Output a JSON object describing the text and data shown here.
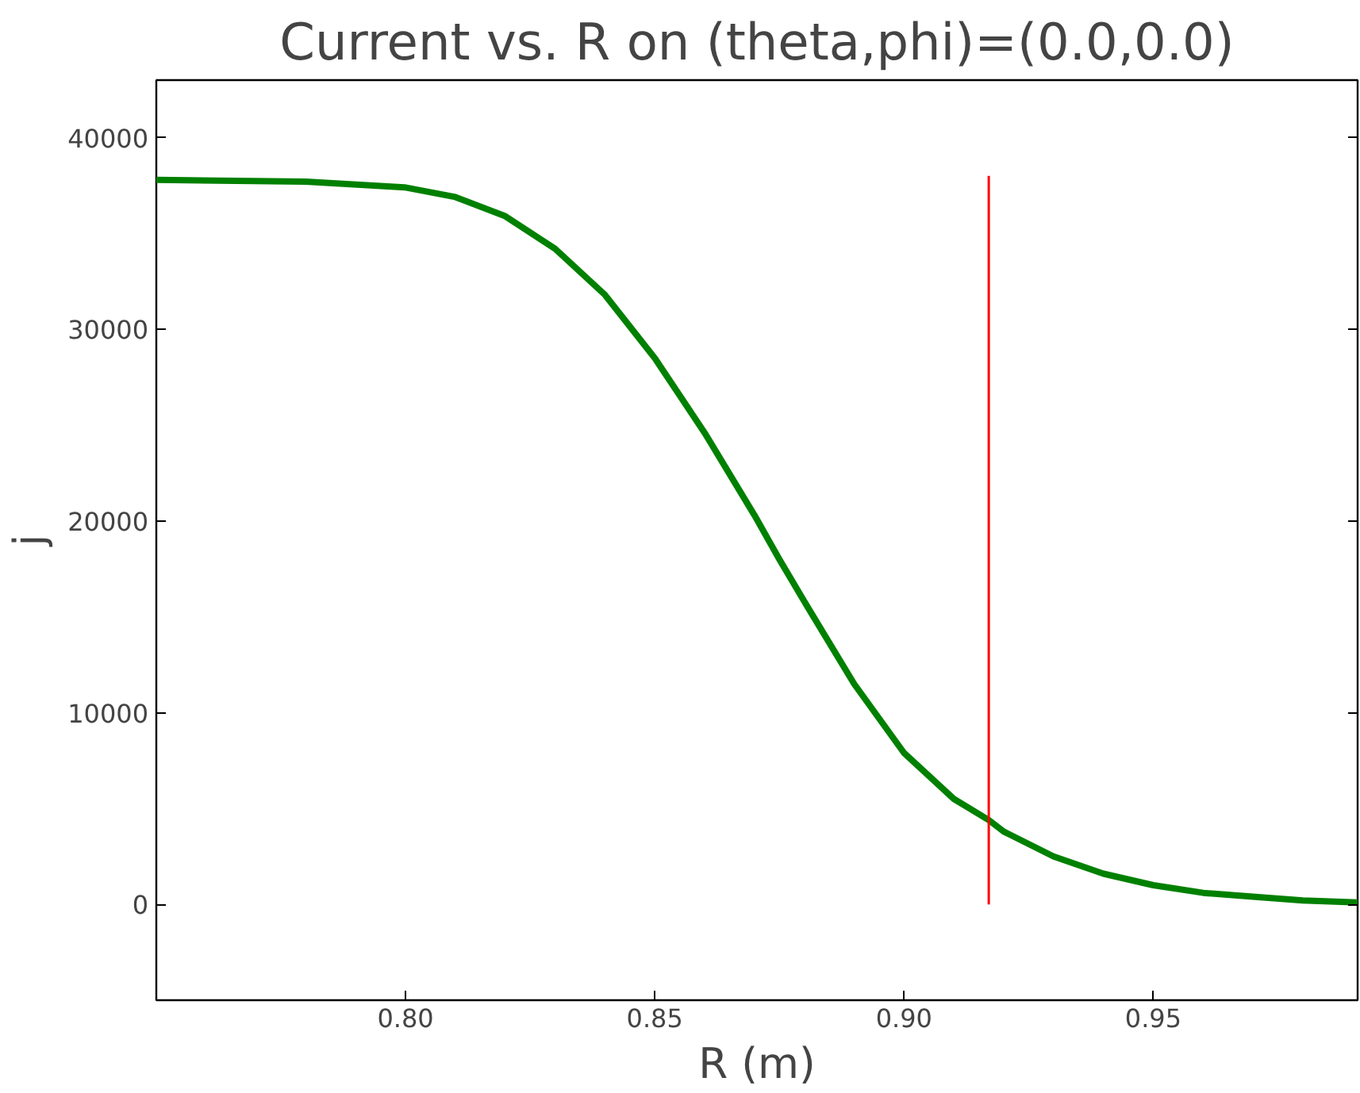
{
  "chart_data": {
    "type": "line",
    "title": "Current vs. R on (theta,phi)=(0.0,0.0)",
    "xlabel": "R (m)",
    "ylabel": "j",
    "xlim": [
      0.75,
      0.991
    ],
    "ylim": [
      -5000,
      43000
    ],
    "xticks": [
      {
        "value": 0.8,
        "label": "0.80"
      },
      {
        "value": 0.85,
        "label": "0.85"
      },
      {
        "value": 0.9,
        "label": "0.90"
      },
      {
        "value": 0.95,
        "label": "0.95"
      }
    ],
    "yticks": [
      0,
      10000,
      20000,
      30000,
      40000
    ],
    "grid": false,
    "marker": "none",
    "line_style": "solid",
    "series": [
      {
        "color": "#008000",
        "x": [
          0.75,
          0.78,
          0.8,
          0.81,
          0.82,
          0.83,
          0.84,
          0.85,
          0.86,
          0.87,
          0.875,
          0.88,
          0.89,
          0.9,
          0.91,
          0.917,
          0.92,
          0.93,
          0.94,
          0.95,
          0.96,
          0.97,
          0.98,
          0.991
        ],
        "values": [
          37800,
          37700,
          37400,
          36900,
          35900,
          34200,
          31800,
          28500,
          24600,
          20300,
          18000,
          15800,
          11500,
          7900,
          5500,
          4400,
          3800,
          2500,
          1600,
          1000,
          600,
          400,
          200,
          100
        ]
      },
      {
        "color": "#ff0000",
        "x": [
          0.917,
          0.917
        ],
        "values": [
          0,
          38000
        ]
      }
    ]
  }
}
